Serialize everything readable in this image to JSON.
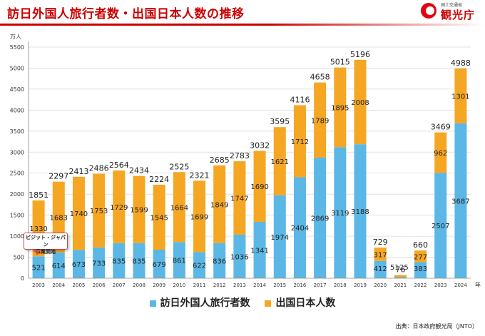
{
  "header": {
    "title": "訪日外国人旅行者数・出国日本人数の推移",
    "logo_sub": "国土交通省",
    "logo_name": "観光庁"
  },
  "callout": {
    "line1": "ビジット・ジャパン",
    "line2": "事業開始"
  },
  "source": "出典：日本政府観光局（JNTO）",
  "colors": {
    "inbound": "#5bb7e5",
    "outbound": "#f5a623",
    "title": "#cc0000"
  },
  "chart_data": {
    "type": "bar",
    "stacked": true,
    "unit_label": "万人",
    "xunit_label": "年",
    "categories": [
      "2003",
      "2004",
      "2005",
      "2006",
      "2007",
      "2008",
      "2009",
      "2010",
      "2011",
      "2012",
      "2013",
      "2014",
      "2015",
      "2016",
      "2017",
      "2018",
      "2019",
      "2020",
      "2021",
      "2022",
      "2023",
      "2024"
    ],
    "series": [
      {
        "name": "訪日外国人旅行者数",
        "values": [
          521,
          614,
          673,
          733,
          835,
          835,
          679,
          861,
          622,
          836,
          1036,
          1341,
          1974,
          2404,
          2869,
          3119,
          3188,
          412,
          25,
          383,
          2507,
          3687
        ]
      },
      {
        "name": "出国日本人数",
        "values": [
          1330,
          1683,
          1740,
          1753,
          1729,
          1599,
          1545,
          1664,
          1699,
          1849,
          1747,
          1690,
          1621,
          1712,
          1789,
          1895,
          2008,
          317,
          51,
          277,
          962,
          1301
        ]
      }
    ],
    "totals": [
      1851,
      2297,
      2413,
      2486,
      2564,
      2434,
      2224,
      2525,
      2321,
      2685,
      2783,
      3032,
      3595,
      4116,
      4658,
      5015,
      5196,
      729,
      76,
      660,
      3469,
      4988
    ],
    "yticks": [
      0,
      500,
      1000,
      1500,
      2000,
      2500,
      3000,
      3500,
      4000,
      4500,
      5000,
      5500
    ],
    "ylim": [
      0,
      5500
    ],
    "grid": true,
    "legend_position": "bottom"
  }
}
